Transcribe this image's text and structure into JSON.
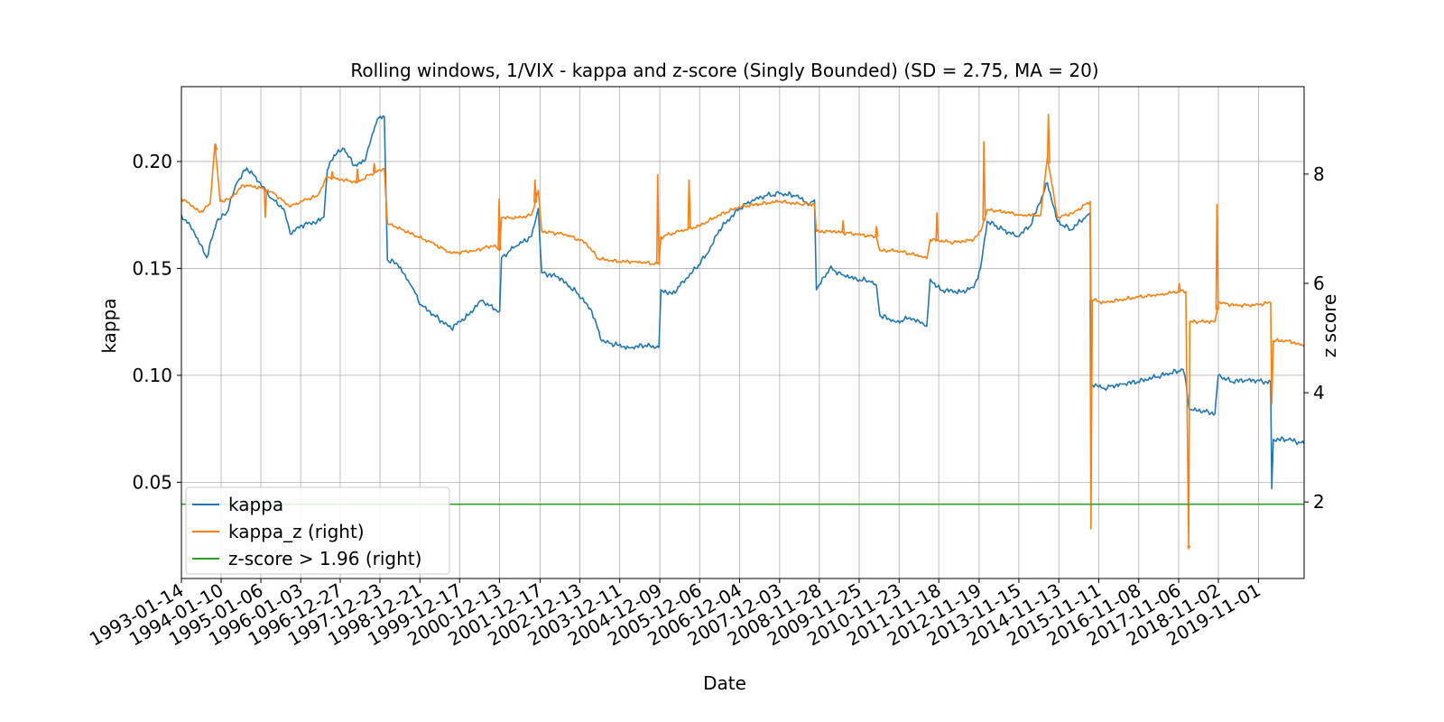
{
  "chart_data": {
    "type": "line",
    "title": "Rolling windows, 1/VIX - kappa and z-score (Singly Bounded) (SD = 2.75, MA = 20)",
    "xlabel": "Date",
    "ylabel": "kappa",
    "y2label": "z score",
    "x_ticks": [
      "1993-01-14",
      "1994-01-10",
      "1995-01-06",
      "1996-01-03",
      "1996-12-27",
      "1997-12-23",
      "1998-12-21",
      "1999-12-17",
      "2000-12-13",
      "2001-12-17",
      "2002-12-13",
      "2003-12-11",
      "2004-12-09",
      "2005-12-06",
      "2006-12-04",
      "2007-12-03",
      "2008-11-28",
      "2009-11-25",
      "2010-11-23",
      "2011-11-18",
      "2012-11-19",
      "2013-11-15",
      "2014-11-13",
      "2015-11-11",
      "2016-11-08",
      "2017-11-06",
      "2018-11-02",
      "2019-11-01"
    ],
    "xlim": [
      "1993-01-14",
      "2020-12-20"
    ],
    "ylim": [
      0.005,
      0.235
    ],
    "y_ticks": [
      0.05,
      0.1,
      0.15,
      0.2
    ],
    "y_tick_labels": [
      "0.05",
      "0.10",
      "0.15",
      "0.20"
    ],
    "y2lim": [
      0.6,
      9.6
    ],
    "y2_ticks": [
      2,
      4,
      6,
      8
    ],
    "y2_tick_labels": [
      "2",
      "4",
      "6",
      "8"
    ],
    "grid": true,
    "legend_position": "lower-left",
    "series": [
      {
        "name": "kappa",
        "axis": "left",
        "color": "#1f77b4",
        "points": [
          [
            "1993-01-14",
            0.175
          ],
          [
            "1993-05-01",
            0.168
          ],
          [
            "1993-09-01",
            0.155
          ],
          [
            "1993-12-01",
            0.172
          ],
          [
            "1994-03-01",
            0.176
          ],
          [
            "1994-06-01",
            0.19
          ],
          [
            "1994-09-01",
            0.197
          ],
          [
            "1995-01-01",
            0.19
          ],
          [
            "1995-04-01",
            0.183
          ],
          [
            "1995-08-01",
            0.178
          ],
          [
            "1995-10-01",
            0.166
          ],
          [
            "1996-01-01",
            0.17
          ],
          [
            "1996-06-01",
            0.172
          ],
          [
            "1996-08-01",
            0.174
          ],
          [
            "1996-09-01",
            0.196
          ],
          [
            "1996-11-01",
            0.203
          ],
          [
            "1997-02-01",
            0.206
          ],
          [
            "1997-05-01",
            0.198
          ],
          [
            "1997-08-01",
            0.2
          ],
          [
            "1997-10-01",
            0.21
          ],
          [
            "1997-12-01",
            0.22
          ],
          [
            "1998-02-01",
            0.221
          ],
          [
            "1998-03-01",
            0.154
          ],
          [
            "1998-06-01",
            0.152
          ],
          [
            "1998-10-01",
            0.142
          ],
          [
            "1999-01-01",
            0.133
          ],
          [
            "1999-05-01",
            0.128
          ],
          [
            "1999-10-01",
            0.122
          ],
          [
            "2000-03-01",
            0.128
          ],
          [
            "2000-07-01",
            0.135
          ],
          [
            "2000-11-01",
            0.131
          ],
          [
            "2000-12-15",
            0.13
          ],
          [
            "2001-01-01",
            0.155
          ],
          [
            "2001-05-01",
            0.16
          ],
          [
            "2001-10-01",
            0.165
          ],
          [
            "2001-12-01",
            0.178
          ],
          [
            "2002-01-01",
            0.148
          ],
          [
            "2002-06-01",
            0.146
          ],
          [
            "2002-12-01",
            0.138
          ],
          [
            "2003-04-01",
            0.13
          ],
          [
            "2003-07-01",
            0.116
          ],
          [
            "2003-12-01",
            0.114
          ],
          [
            "2004-03-01",
            0.113
          ],
          [
            "2004-08-01",
            0.114
          ],
          [
            "2004-12-01",
            0.113
          ],
          [
            "2004-12-20",
            0.14
          ],
          [
            "2005-04-01",
            0.138
          ],
          [
            "2005-08-01",
            0.145
          ],
          [
            "2005-11-01",
            0.15
          ],
          [
            "2006-03-01",
            0.158
          ],
          [
            "2006-06-01",
            0.168
          ],
          [
            "2006-12-01",
            0.178
          ],
          [
            "2007-04-01",
            0.182
          ],
          [
            "2007-08-01",
            0.184
          ],
          [
            "2007-12-01",
            0.185
          ],
          [
            "2008-05-01",
            0.184
          ],
          [
            "2008-09-01",
            0.18
          ],
          [
            "2008-10-15",
            0.182
          ],
          [
            "2008-11-01",
            0.14
          ],
          [
            "2009-03-01",
            0.15
          ],
          [
            "2009-07-01",
            0.147
          ],
          [
            "2009-11-01",
            0.145
          ],
          [
            "2010-03-01",
            0.144
          ],
          [
            "2010-05-01",
            0.142
          ],
          [
            "2010-06-01",
            0.128
          ],
          [
            "2010-11-01",
            0.125
          ],
          [
            "2011-03-01",
            0.127
          ],
          [
            "2011-07-01",
            0.124
          ],
          [
            "2011-08-01",
            0.123
          ],
          [
            "2011-09-01",
            0.145
          ],
          [
            "2011-12-01",
            0.14
          ],
          [
            "2012-06-01",
            0.139
          ],
          [
            "2012-10-01",
            0.141
          ],
          [
            "2012-12-01",
            0.15
          ],
          [
            "2013-02-01",
            0.172
          ],
          [
            "2013-07-01",
            0.168
          ],
          [
            "2013-11-01",
            0.165
          ],
          [
            "2014-03-01",
            0.17
          ],
          [
            "2014-08-01",
            0.19
          ],
          [
            "2014-11-01",
            0.172
          ],
          [
            "2015-03-01",
            0.168
          ],
          [
            "2015-08-01",
            0.175
          ],
          [
            "2015-08-25",
            0.176
          ],
          [
            "2015-09-01",
            0.096
          ],
          [
            "2016-01-01",
            0.094
          ],
          [
            "2016-06-01",
            0.096
          ],
          [
            "2016-11-01",
            0.097
          ],
          [
            "2017-06-01",
            0.1
          ],
          [
            "2017-11-01",
            0.102
          ],
          [
            "2017-12-01",
            0.103
          ],
          [
            "2018-01-01",
            0.1
          ],
          [
            "2018-02-10",
            0.084
          ],
          [
            "2018-08-01",
            0.083
          ],
          [
            "2018-10-01",
            0.082
          ],
          [
            "2018-11-01",
            0.1
          ],
          [
            "2019-03-01",
            0.097
          ],
          [
            "2019-08-01",
            0.098
          ],
          [
            "2020-01-01",
            0.097
          ],
          [
            "2020-02-20",
            0.097
          ],
          [
            "2020-03-01",
            0.047
          ],
          [
            "2020-03-15",
            0.07
          ],
          [
            "2020-08-01",
            0.07
          ],
          [
            "2020-12-20",
            0.068
          ]
        ]
      },
      {
        "name": "kappa_z (right)",
        "axis": "right",
        "color": "#ff7f0e",
        "points": [
          [
            "1993-01-14",
            7.55
          ],
          [
            "1993-04-01",
            7.45
          ],
          [
            "1993-07-01",
            7.3
          ],
          [
            "1993-10-01",
            7.45
          ],
          [
            "1993-11-15",
            8.55
          ],
          [
            "1994-01-01",
            7.5
          ],
          [
            "1994-04-01",
            7.55
          ],
          [
            "1994-08-01",
            7.8
          ],
          [
            "1995-01-01",
            7.75
          ],
          [
            "1995-05-01",
            7.65
          ],
          [
            "1995-10-01",
            7.4
          ],
          [
            "1996-01-01",
            7.5
          ],
          [
            "1996-06-01",
            7.6
          ],
          [
            "1996-09-01",
            7.95
          ],
          [
            "1997-01-01",
            7.9
          ],
          [
            "1997-06-01",
            7.85
          ],
          [
            "1997-10-01",
            8.0
          ],
          [
            "1998-02-01",
            8.1
          ],
          [
            "1998-03-01",
            7.1
          ],
          [
            "1998-07-01",
            7.0
          ],
          [
            "1998-12-01",
            6.85
          ],
          [
            "1999-04-01",
            6.75
          ],
          [
            "1999-10-01",
            6.55
          ],
          [
            "2000-05-01",
            6.6
          ],
          [
            "2000-11-01",
            6.7
          ],
          [
            "2000-12-15",
            6.6
          ],
          [
            "2001-01-01",
            7.2
          ],
          [
            "2001-06-01",
            7.2
          ],
          [
            "2001-10-01",
            7.25
          ],
          [
            "2001-12-01",
            7.7
          ],
          [
            "2002-01-01",
            6.95
          ],
          [
            "2002-08-01",
            6.9
          ],
          [
            "2003-02-01",
            6.75
          ],
          [
            "2003-06-01",
            6.45
          ],
          [
            "2003-12-01",
            6.4
          ],
          [
            "2004-05-01",
            6.4
          ],
          [
            "2004-12-01",
            6.35
          ],
          [
            "2004-12-20",
            6.85
          ],
          [
            "2005-06-01",
            6.95
          ],
          [
            "2005-12-01",
            7.05
          ],
          [
            "2006-06-01",
            7.25
          ],
          [
            "2006-12-01",
            7.4
          ],
          [
            "2007-06-01",
            7.45
          ],
          [
            "2007-12-01",
            7.5
          ],
          [
            "2008-06-01",
            7.45
          ],
          [
            "2008-10-15",
            7.45
          ],
          [
            "2008-11-01",
            6.95
          ],
          [
            "2009-04-01",
            6.95
          ],
          [
            "2009-11-01",
            6.9
          ],
          [
            "2010-05-01",
            6.85
          ],
          [
            "2010-06-01",
            6.6
          ],
          [
            "2010-11-01",
            6.6
          ],
          [
            "2011-06-01",
            6.5
          ],
          [
            "2011-08-01",
            6.45
          ],
          [
            "2011-09-01",
            6.8
          ],
          [
            "2012-04-01",
            6.75
          ],
          [
            "2012-10-01",
            6.8
          ],
          [
            "2012-12-01",
            6.95
          ],
          [
            "2013-02-01",
            7.35
          ],
          [
            "2013-08-01",
            7.3
          ],
          [
            "2013-12-01",
            7.25
          ],
          [
            "2014-06-01",
            7.25
          ],
          [
            "2014-08-01",
            8.3
          ],
          [
            "2014-11-01",
            7.2
          ],
          [
            "2015-04-01",
            7.3
          ],
          [
            "2015-08-25",
            7.5
          ],
          [
            "2015-09-01",
            5.7
          ],
          [
            "2016-01-01",
            5.65
          ],
          [
            "2016-06-01",
            5.7
          ],
          [
            "2016-11-01",
            5.75
          ],
          [
            "2017-06-01",
            5.8
          ],
          [
            "2017-11-01",
            5.85
          ],
          [
            "2018-01-10",
            5.85
          ],
          [
            "2018-02-05",
            1.2
          ],
          [
            "2018-02-15",
            5.3
          ],
          [
            "2018-08-01",
            5.3
          ],
          [
            "2018-10-01",
            5.3
          ],
          [
            "2018-11-01",
            5.65
          ],
          [
            "2019-04-01",
            5.6
          ],
          [
            "2019-10-01",
            5.6
          ],
          [
            "2020-02-20",
            5.65
          ],
          [
            "2020-03-01",
            3.8
          ],
          [
            "2020-03-15",
            4.95
          ],
          [
            "2020-08-01",
            4.95
          ],
          [
            "2020-12-20",
            4.85
          ]
        ],
        "spikes": [
          [
            "1993-11-20",
            8.55
          ],
          [
            "1995-02-15",
            7.2
          ],
          [
            "1996-10-15",
            8.05
          ],
          [
            "1997-06-01",
            8.1
          ],
          [
            "1997-11-01",
            8.2
          ],
          [
            "2000-12-10",
            7.55
          ],
          [
            "2001-11-01",
            7.9
          ],
          [
            "2004-11-20",
            8.0
          ],
          [
            "2005-09-01",
            7.9
          ],
          [
            "2009-07-01",
            7.15
          ],
          [
            "2010-05-01",
            7.05
          ],
          [
            "2011-11-01",
            7.3
          ],
          [
            "2013-01-01",
            8.6
          ],
          [
            "2014-08-10",
            9.1
          ],
          [
            "2015-09-01",
            1.5
          ],
          [
            "2017-11-10",
            6.0
          ],
          [
            "2018-02-05",
            1.15
          ],
          [
            "2018-10-20",
            7.45
          ]
        ]
      },
      {
        "name": "z-score > 1.96 (right)",
        "axis": "right",
        "color": "#2ca02c",
        "constant": 1.96
      }
    ]
  }
}
